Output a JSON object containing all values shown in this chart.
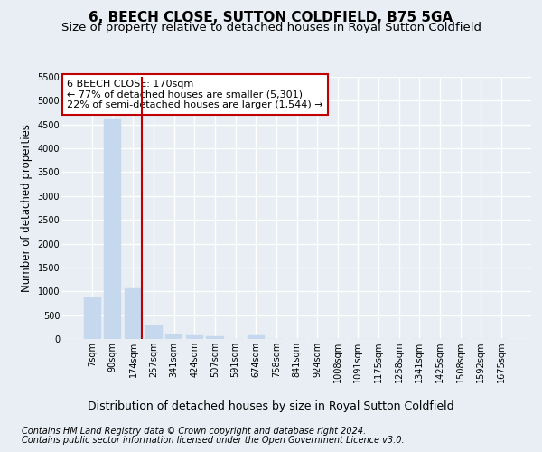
{
  "title": "6, BEECH CLOSE, SUTTON COLDFIELD, B75 5GA",
  "subtitle": "Size of property relative to detached houses in Royal Sutton Coldfield",
  "xlabel": "Distribution of detached houses by size in Royal Sutton Coldfield",
  "ylabel": "Number of detached properties",
  "footnote1": "Contains HM Land Registry data © Crown copyright and database right 2024.",
  "footnote2": "Contains public sector information licensed under the Open Government Licence v3.0.",
  "categories": [
    "7sqm",
    "90sqm",
    "174sqm",
    "257sqm",
    "341sqm",
    "424sqm",
    "507sqm",
    "591sqm",
    "674sqm",
    "758sqm",
    "841sqm",
    "924sqm",
    "1008sqm",
    "1091sqm",
    "1175sqm",
    "1258sqm",
    "1341sqm",
    "1425sqm",
    "1508sqm",
    "1592sqm",
    "1675sqm"
  ],
  "values": [
    870,
    4600,
    1060,
    280,
    90,
    80,
    50,
    0,
    70,
    0,
    0,
    0,
    0,
    0,
    0,
    0,
    0,
    0,
    0,
    0,
    0
  ],
  "bar_color": "#c5d8ed",
  "bar_edge_color": "#c5d8ed",
  "vline_position": 2.43,
  "vline_color": "#c00000",
  "annotation_text": "6 BEECH CLOSE: 170sqm\n← 77% of detached houses are smaller (5,301)\n22% of semi-detached houses are larger (1,544) →",
  "annotation_box_facecolor": "white",
  "annotation_box_edgecolor": "#c00000",
  "ylim": [
    0,
    5500
  ],
  "yticks": [
    0,
    500,
    1000,
    1500,
    2000,
    2500,
    3000,
    3500,
    4000,
    4500,
    5000,
    5500
  ],
  "bg_color": "#e8eef4",
  "plot_bg_color": "#e8eef4",
  "title_fontsize": 11,
  "subtitle_fontsize": 9.5,
  "xlabel_fontsize": 9,
  "ylabel_fontsize": 8.5,
  "tick_fontsize": 7,
  "annotation_fontsize": 8,
  "footnote_fontsize": 7,
  "grid_color": "white",
  "grid_linewidth": 1.0
}
